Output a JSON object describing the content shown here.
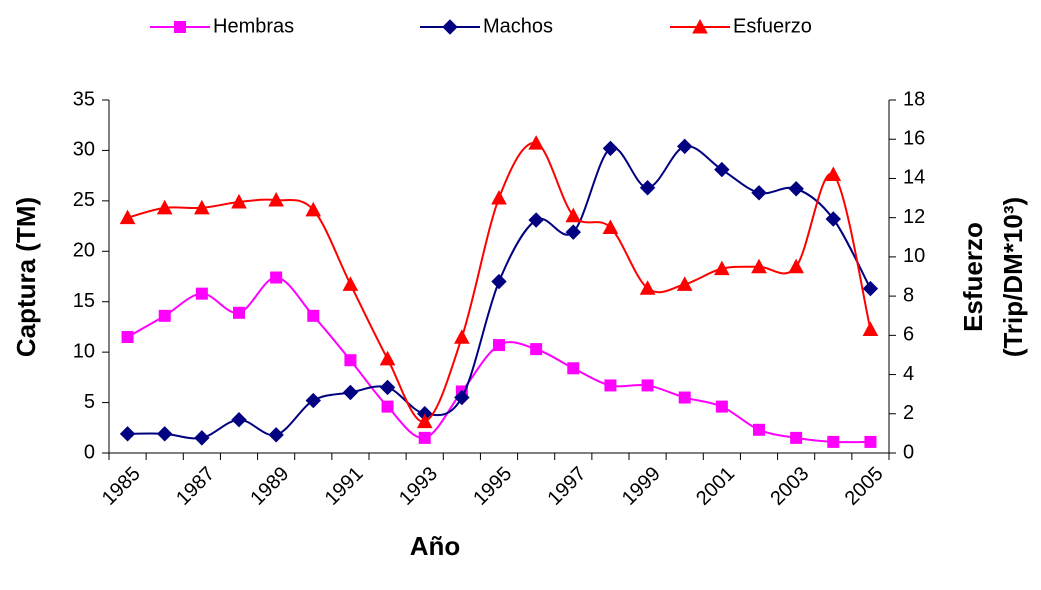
{
  "chart_data": {
    "type": "line",
    "categories": [
      "1985",
      null,
      "1987",
      null,
      "1989",
      null,
      "1991",
      null,
      "1993",
      null,
      "1995",
      null,
      "1997",
      null,
      "1999",
      null,
      "2001",
      null,
      "2003",
      null,
      "2005"
    ],
    "series": [
      {
        "name": "Hembras",
        "color": "#ff00ff",
        "marker": "square",
        "axis": "y",
        "values": [
          11.5,
          13.6,
          15.8,
          13.9,
          17.4,
          13.6,
          9.2,
          4.6,
          1.5,
          6.1,
          10.7,
          10.3,
          8.4,
          6.7,
          6.7,
          5.5,
          4.6,
          2.3,
          1.5,
          1.1,
          1.1
        ]
      },
      {
        "name": "Machos",
        "color": "#000080",
        "marker": "diamond",
        "axis": "y",
        "values": [
          1.9,
          1.9,
          1.5,
          3.3,
          1.8,
          5.2,
          6.0,
          6.5,
          3.9,
          5.5,
          17.0,
          23.1,
          21.9,
          30.2,
          26.3,
          30.4,
          28.1,
          25.8,
          26.2,
          23.2,
          16.3
        ]
      },
      {
        "name": "Esfuerzo",
        "color": "#ff0000",
        "marker": "triangle",
        "axis": "y2",
        "values": [
          12.0,
          12.5,
          12.5,
          12.8,
          12.9,
          12.4,
          8.6,
          4.8,
          1.6,
          5.9,
          13.0,
          15.8,
          12.1,
          11.5,
          8.4,
          8.6,
          9.4,
          9.5,
          9.5,
          14.2,
          6.3
        ]
      }
    ],
    "xlabel": "Año",
    "ylabel": "Captura (TM)",
    "y2label": [
      "Esfuerzo",
      "(Trip/DM*10³)"
    ],
    "ylim": [
      0,
      35
    ],
    "yticks": [
      0,
      5,
      10,
      15,
      20,
      25,
      30,
      35
    ],
    "y2lim": [
      0,
      18
    ],
    "y2ticks": [
      0,
      2,
      4,
      6,
      8,
      10,
      12,
      14,
      16,
      18
    ],
    "smooth": true,
    "legend": "top"
  }
}
